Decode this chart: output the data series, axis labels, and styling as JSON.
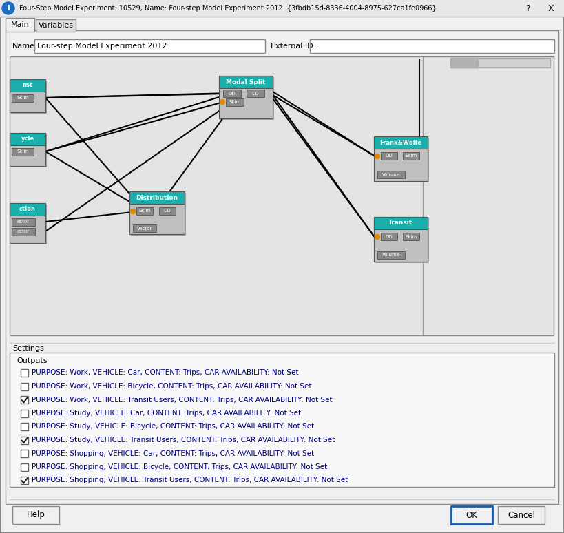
{
  "title": "Four-Step Model Experiment: 10529, Name: Four-step Model Experiment 2012  {3fbdb15d-8336-4004-8975-627ca1fe0966}",
  "tab_main": "Main",
  "tab_vars": "Variables",
  "name_label": "Name:",
  "name_value": "Four-step Model Experiment 2012",
  "ext_id_label": "External ID:",
  "settings_label": "Settings",
  "outputs_label": "Outputs",
  "checkboxes": [
    {
      "checked": false,
      "label": "PURPOSE: Work, VEHICLE: Car, CONTENT: Trips, CAR AVAILABILITY: Not Set"
    },
    {
      "checked": false,
      "label": "PURPOSE: Work, VEHICLE: Bicycle, CONTENT: Trips, CAR AVAILABILITY: Not Set"
    },
    {
      "checked": true,
      "label": "PURPOSE: Work, VEHICLE: Transit Users, CONTENT: Trips, CAR AVAILABILITY: Not Set"
    },
    {
      "checked": false,
      "label": "PURPOSE: Study, VEHICLE: Car, CONTENT: Trips, CAR AVAILABILITY: Not Set"
    },
    {
      "checked": false,
      "label": "PURPOSE: Study, VEHICLE: Bicycle, CONTENT: Trips, CAR AVAILABILITY: Not Set"
    },
    {
      "checked": true,
      "label": "PURPOSE: Study, VEHICLE: Transit Users, CONTENT: Trips, CAR AVAILABILITY: Not Set"
    },
    {
      "checked": false,
      "label": "PURPOSE: Shopping, VEHICLE: Car, CONTENT: Trips, CAR AVAILABILITY: Not Set"
    },
    {
      "checked": false,
      "label": "PURPOSE: Shopping, VEHICLE: Bicycle, CONTENT: Trips, CAR AVAILABILITY: Not Set"
    },
    {
      "checked": true,
      "label": "PURPOSE: Shopping, VEHICLE: Transit Users, CONTENT: Trips, CAR AVAILABILITY: Not Set"
    }
  ],
  "btn_help": "Help",
  "btn_ok": "OK",
  "btn_cancel": "Cancel",
  "teal": "#1aafaa",
  "orange": "#e08800",
  "white": "#ffffff",
  "black": "#000000",
  "node_gray": "#c0c0c0",
  "port_gray": "#888888",
  "canvas_bg": "#e4e4e4",
  "grid_color": "#d0d0d0",
  "dialog_bg": "#f0f0f0",
  "shadow": "#a0a0a0"
}
